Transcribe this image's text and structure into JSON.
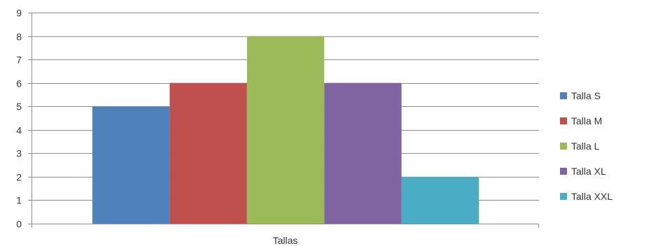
{
  "chart_data": {
    "type": "bar",
    "categories": [
      "Tallas"
    ],
    "series": [
      {
        "name": "Talla S",
        "values": [
          5
        ],
        "color": "#4f81bd"
      },
      {
        "name": "Talla M",
        "values": [
          6
        ],
        "color": "#c0504d"
      },
      {
        "name": "Talla L",
        "values": [
          8
        ],
        "color": "#9bbb59"
      },
      {
        "name": "Talla XL",
        "values": [
          6
        ],
        "color": "#8064a2"
      },
      {
        "name": "Talla XXL",
        "values": [
          2
        ],
        "color": "#4bacc6"
      }
    ],
    "ylim": [
      0,
      9
    ],
    "yticks": [
      "0",
      "1",
      "2",
      "3",
      "4",
      "5",
      "6",
      "7",
      "8",
      "9"
    ],
    "grid": true,
    "legend": "right",
    "title": "",
    "xlabel": "",
    "ylabel": ""
  }
}
